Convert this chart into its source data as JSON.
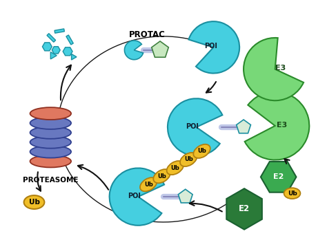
{
  "bg_color": "#ffffff",
  "poi_color": "#45cfe0",
  "poi_edge": "#1a8fa0",
  "e3_color": "#78d878",
  "e3_edge": "#2a8a2a",
  "e2_color": "#3aaa50",
  "e2_edge": "#1a6030",
  "e2_dark_color": "#2a7a38",
  "linker_color": "#c0c8e8",
  "linker_edge": "#8888bb",
  "ub_color": "#f0be28",
  "ub_edge": "#b08010",
  "prot_blue": "#6878c0",
  "prot_blue_edge": "#304090",
  "prot_red": "#e07860",
  "prot_red_edge": "#903020",
  "frag_color": "#45cfe0",
  "frag_edge": "#1a8fa0",
  "arrow_color": "#111111",
  "text_dark": "#102030",
  "protac_label": "PROTAC",
  "proteasome_label": "PROTEASOME",
  "poi_label": "POI",
  "e3_label": "E3",
  "e2_label": "E2",
  "ub_label": "Ub"
}
